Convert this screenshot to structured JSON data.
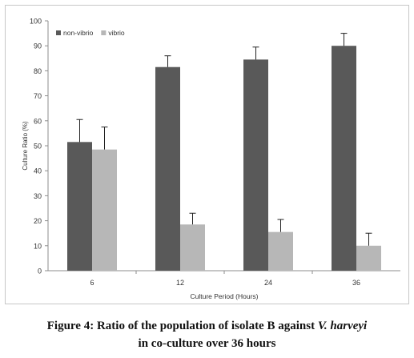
{
  "chart_data": {
    "type": "bar",
    "title": "",
    "xlabel": "Culture Period (Hours)",
    "ylabel": "Culture Ratio (%)",
    "ylim": [
      0,
      100
    ],
    "yticks": [
      "0",
      "10",
      "20",
      "30",
      "40",
      "50",
      "60",
      "70",
      "80",
      "90",
      "100"
    ],
    "grid": false,
    "legend_position": "top-left",
    "categories": [
      "6",
      "12",
      "24",
      "36"
    ],
    "series": [
      {
        "name": "non-vibrio",
        "color": "#595959",
        "values": [
          51.5,
          81.5,
          84.5,
          90
        ],
        "errors": [
          9,
          4.5,
          5,
          5
        ]
      },
      {
        "name": "vibrio",
        "color": "#b7b7b7",
        "values": [
          48.5,
          18.5,
          15.5,
          10
        ],
        "errors": [
          9,
          4.5,
          5,
          5
        ]
      }
    ]
  },
  "caption": {
    "line1_prefix": "Figure 4: Ratio of the population of isolate B against ",
    "line1_species": "V. harveyi",
    "line2": "in co-culture over 36 hours"
  }
}
